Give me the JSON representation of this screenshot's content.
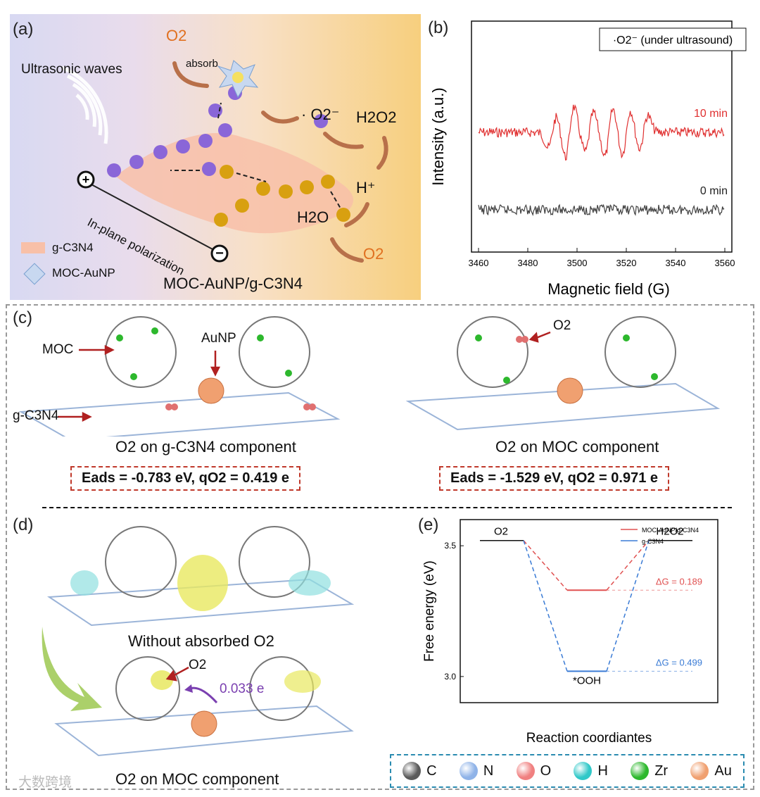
{
  "panel_a": {
    "letter": "(a)",
    "o2_top": "O2",
    "absorb": "absorb",
    "superoxide": "· O2⁻",
    "h2o2": "H2O2",
    "h_plus": "H⁺",
    "h2o": "H2O",
    "o2_bottom": "O2",
    "ultrasonic": "Ultrasonic waves",
    "polarization": "In-plane polarization",
    "electron_label": "e⁻",
    "hole_label": "h⁺",
    "legend_gcn": "g-C3N4",
    "legend_moc": "MOC-AuNP",
    "caption": "MOC-AuNP/g-C3N4"
  },
  "panel_b": {
    "letter": "(b)",
    "chart_data": {
      "type": "line",
      "title": "",
      "legend_box": "·O2⁻ (under ultrasound)",
      "xlabel": "Magnetic field (G)",
      "ylabel": "Intensity (a.u.)",
      "xlim": [
        3460,
        3560
      ],
      "x_ticks": [
        "3460",
        "3480",
        "3500",
        "3520",
        "3540",
        "3560"
      ],
      "series": [
        {
          "name": "10 min",
          "color": "#e03030",
          "baseline": 1.0,
          "peaks": [
            {
              "x": 3490,
              "amp": 0.55
            },
            {
              "x": 3497,
              "amp": 0.9
            },
            {
              "x": 3505,
              "amp": 0.7
            },
            {
              "x": 3513,
              "amp": 0.85
            },
            {
              "x": 3520,
              "amp": 0.8
            },
            {
              "x": 3527,
              "amp": 0.6
            }
          ]
        },
        {
          "name": "0 min",
          "color": "#404040",
          "baseline": 0.0,
          "peaks": []
        }
      ]
    }
  },
  "panel_c": {
    "letter": "(c)",
    "label_moc": "MOC",
    "label_aunp": "AuNP",
    "label_gcn": "g-C3N4",
    "label_o2": "O2",
    "caption_left": "O2 on g-C3N4 component",
    "caption_right": "O2 on MOC component",
    "eq_left": "Eads = -0.783 eV, qO2 = 0.419 e",
    "eq_right": "Eads = -1.529 eV, qO2 = 0.971 e"
  },
  "panel_d": {
    "letter": "(d)",
    "caption_top": "Without absorbed O2",
    "caption_bottom": "O2 on MOC component",
    "label_o2": "O2",
    "charge": "0.033 e"
  },
  "panel_e": {
    "letter": "(e)",
    "chart_data": {
      "type": "line",
      "xlabel": "Reaction coordiantes",
      "ylabel": "Free energy (eV)",
      "ylim": [
        2.9,
        3.6
      ],
      "y_ticks": [
        3.0,
        3.5
      ],
      "states": [
        "O2",
        "*OOH",
        "H2O2"
      ],
      "series": [
        {
          "name": "MOC-AuNP/g-C3N4",
          "color": "#e05050",
          "values": [
            3.52,
            3.33,
            3.52
          ],
          "dG": "ΔG = 0.189"
        },
        {
          "name": "g-C3N4",
          "color": "#3a7bd5",
          "values": [
            3.52,
            3.02,
            3.52
          ],
          "dG": "ΔG = 0.499"
        }
      ]
    }
  },
  "atom_legend": [
    {
      "symbol": "C",
      "color": "#5a5a5a"
    },
    {
      "symbol": "N",
      "color": "#8fb3e8"
    },
    {
      "symbol": "O",
      "color": "#f08080"
    },
    {
      "symbol": "H",
      "color": "#30c8c8"
    },
    {
      "symbol": "Zr",
      "color": "#2db82d"
    },
    {
      "symbol": "Au",
      "color": "#f0a070"
    }
  ],
  "watermark": "大数跨境"
}
